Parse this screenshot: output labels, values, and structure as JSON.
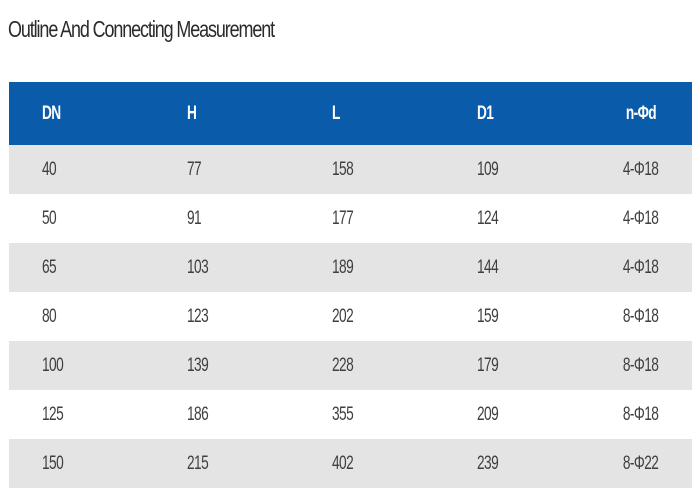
{
  "title": "Outline And Connecting Measurement",
  "table": {
    "headers": [
      "DN",
      "H",
      "L",
      "D1",
      "n-Φd"
    ],
    "rows": [
      [
        "40",
        "77",
        "158",
        "109",
        "4-Φ18"
      ],
      [
        "50",
        "91",
        "177",
        "124",
        "4-Φ18"
      ],
      [
        "65",
        "103",
        "189",
        "144",
        "4-Φ18"
      ],
      [
        "80",
        "123",
        "202",
        "159",
        "8-Φ18"
      ],
      [
        "100",
        "139",
        "228",
        "179",
        "8-Φ18"
      ],
      [
        "125",
        "186",
        "355",
        "209",
        "8-Φ18"
      ],
      [
        "150",
        "215",
        "402",
        "239",
        "8-Φ22"
      ]
    ]
  },
  "colors": {
    "header_background": "#0a5cab",
    "header_text": "#ffffff",
    "stripe_row": "#e4e4e4",
    "plain_row": "#ffffff",
    "body_text": "#3f3f3f"
  }
}
